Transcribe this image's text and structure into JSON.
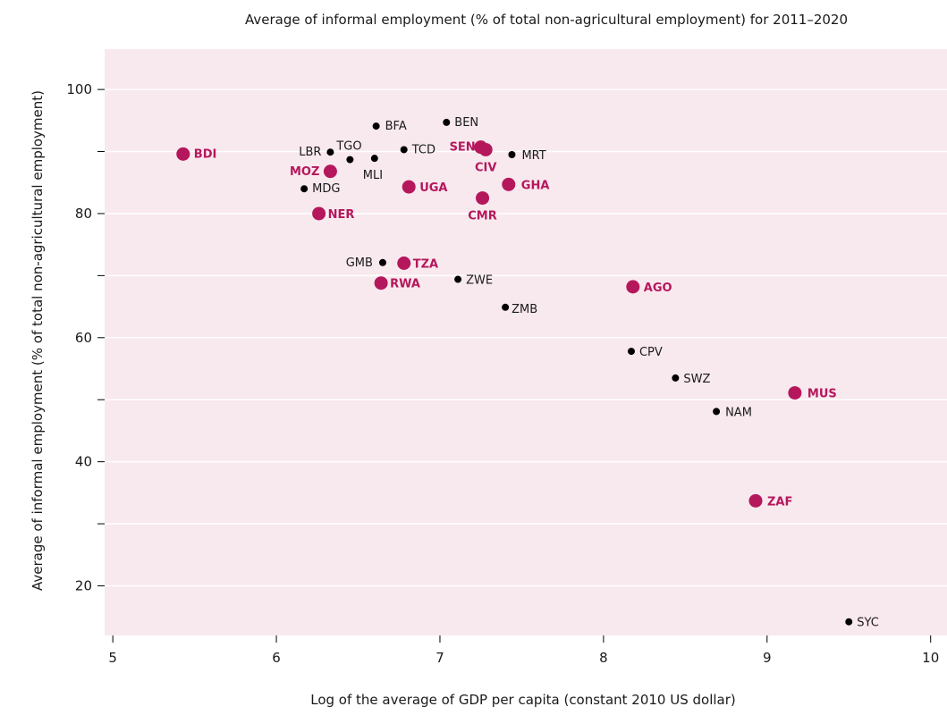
{
  "chart_data": {
    "type": "scatter",
    "title": "Average of informal employment (% of total non-agricultural employment) for 2011–2020",
    "xlabel": "Log of the average of GDP per capita (constant 2010 US dollar)",
    "ylabel": "Average of informal employment (% of total non-agricultural employment)",
    "xlim": [
      4.95,
      10.1
    ],
    "ylim": [
      12,
      106.5
    ],
    "x_ticks": [
      5,
      6,
      7,
      8,
      9,
      10
    ],
    "y_ticks": [
      20,
      40,
      60,
      80,
      100
    ],
    "y_minor_ticks": [
      30,
      50,
      70,
      90
    ],
    "grid": "horizontal",
    "colors": {
      "plot_background": "#f8e9ee",
      "grid": "#ffffff",
      "highlight": "#b5175c",
      "regular": "#000000"
    },
    "points": [
      {
        "label": "BDI",
        "x": 5.43,
        "y": 89.6,
        "highlight": true
      },
      {
        "label": "MOZ",
        "x": 6.33,
        "y": 86.8,
        "highlight": true
      },
      {
        "label": "NER",
        "x": 6.26,
        "y": 80.0,
        "highlight": true
      },
      {
        "label": "UGA",
        "x": 6.81,
        "y": 84.3,
        "highlight": true
      },
      {
        "label": "SEN",
        "x": 7.25,
        "y": 90.7,
        "highlight": true
      },
      {
        "label": "CIV",
        "x": 7.28,
        "y": 90.3,
        "highlight": true
      },
      {
        "label": "GHA",
        "x": 7.42,
        "y": 84.7,
        "highlight": true
      },
      {
        "label": "CMR",
        "x": 7.26,
        "y": 82.5,
        "highlight": true
      },
      {
        "label": "TZA",
        "x": 6.78,
        "y": 72.0,
        "highlight": true
      },
      {
        "label": "RWA",
        "x": 6.64,
        "y": 68.8,
        "highlight": true
      },
      {
        "label": "AGO",
        "x": 8.18,
        "y": 68.2,
        "highlight": true
      },
      {
        "label": "MUS",
        "x": 9.17,
        "y": 51.1,
        "highlight": true
      },
      {
        "label": "ZAF",
        "x": 8.93,
        "y": 33.7,
        "highlight": true
      },
      {
        "label": "BEN",
        "x": 7.04,
        "y": 94.7,
        "highlight": false
      },
      {
        "label": "BFA",
        "x": 6.61,
        "y": 94.1,
        "highlight": false
      },
      {
        "label": "TCD",
        "x": 6.78,
        "y": 90.3,
        "highlight": false
      },
      {
        "label": "LBR",
        "x": 6.33,
        "y": 89.9,
        "highlight": false
      },
      {
        "label": "TGO",
        "x": 6.45,
        "y": 88.7,
        "highlight": false
      },
      {
        "label": "MLI",
        "x": 6.6,
        "y": 88.9,
        "highlight": false
      },
      {
        "label": "MRT",
        "x": 7.44,
        "y": 89.5,
        "highlight": false
      },
      {
        "label": "MDG",
        "x": 6.17,
        "y": 84.0,
        "highlight": false
      },
      {
        "label": "GMB",
        "x": 6.65,
        "y": 72.1,
        "highlight": false
      },
      {
        "label": "ZWE",
        "x": 7.11,
        "y": 69.4,
        "highlight": false
      },
      {
        "label": "ZMB",
        "x": 7.4,
        "y": 64.9,
        "highlight": false
      },
      {
        "label": "CPV",
        "x": 8.17,
        "y": 57.8,
        "highlight": false
      },
      {
        "label": "SWZ",
        "x": 8.44,
        "y": 53.5,
        "highlight": false
      },
      {
        "label": "NAM",
        "x": 8.69,
        "y": 48.1,
        "highlight": false
      },
      {
        "label": "SYC",
        "x": 9.5,
        "y": 14.2,
        "highlight": false
      }
    ]
  }
}
